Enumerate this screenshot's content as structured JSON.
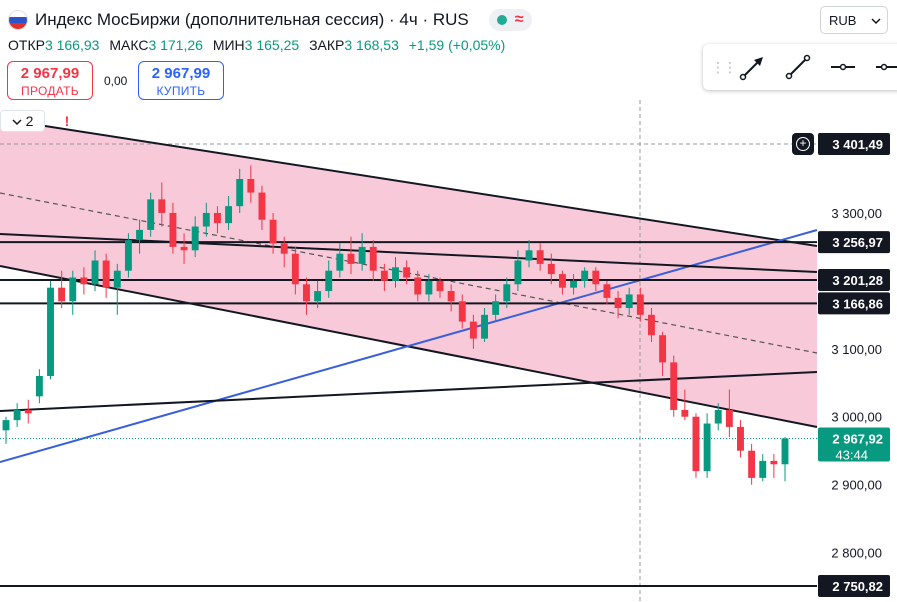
{
  "header": {
    "title": "Индекс МосБиржи (дополнительная сессия) · 4ч · RUS",
    "ohlc": [
      {
        "label": "ОТКР",
        "value": "3 166,93"
      },
      {
        "label": "МАКС",
        "value": "3 171,26"
      },
      {
        "label": "МИН",
        "value": "3 165,25"
      },
      {
        "label": "ЗАКР",
        "value": "3 168,53"
      }
    ],
    "change": "+1,59 (+0,05%)",
    "status_icons": [
      "market-open-dot-icon",
      "wave-icon"
    ]
  },
  "trade": {
    "sell_price": "2 967,99",
    "sell_label": "ПРОДАТЬ",
    "spread": "0,00",
    "buy_price": "2 967,99",
    "buy_label": "КУПИТЬ"
  },
  "indicators_toggle": "2",
  "currency": "RUB",
  "drawing_tools": [
    "arrow-tool-icon",
    "trend-line-tool-icon",
    "horizontal-ray-tool-icon",
    "horizontal-line-tool-icon"
  ],
  "colors": {
    "up": "#089981",
    "down": "#f23645",
    "channel_fill": "#f8c9d8",
    "trendline_blue": "#3a5fd9",
    "accent_blue": "#2962ff"
  },
  "chart_data": {
    "type": "candlestick",
    "y_range": [
      2735,
      3445
    ],
    "price_axis_ticks": [
      {
        "value": 3300,
        "label": "3 300,00"
      },
      {
        "value": 3100,
        "label": "3 100,00"
      },
      {
        "value": 3000,
        "label": "3 000,00"
      },
      {
        "value": 2900,
        "label": "2 900,00"
      },
      {
        "value": 2800,
        "label": "2 800,00"
      }
    ],
    "horizontal_levels": [
      {
        "value": 3256.97,
        "label": "3 256,97"
      },
      {
        "value": 3201.28,
        "label": "3 201,28"
      },
      {
        "value": 3166.86,
        "label": "3 166,86"
      },
      {
        "value": 2750.82,
        "label": "2 750,82"
      }
    ],
    "crosshair": {
      "value": 3401.49,
      "label": "3 401,49"
    },
    "last_price": {
      "value": 2967.92,
      "label": "2 967,92",
      "countdown": "43:44"
    },
    "candles": [
      [
        2980,
        2995,
        2960,
        3000
      ],
      [
        2995,
        3010,
        2985,
        3020
      ],
      [
        3010,
        3005,
        2990,
        3025
      ],
      [
        3030,
        3060,
        3020,
        3070
      ],
      [
        3060,
        3190,
        3055,
        3200
      ],
      [
        3190,
        3170,
        3160,
        3215
      ],
      [
        3170,
        3205,
        3150,
        3215
      ],
      [
        3205,
        3195,
        3180,
        3220
      ],
      [
        3195,
        3230,
        3185,
        3245
      ],
      [
        3230,
        3190,
        3175,
        3240
      ],
      [
        3190,
        3215,
        3150,
        3225
      ],
      [
        3215,
        3260,
        3205,
        3270
      ],
      [
        3260,
        3275,
        3240,
        3290
      ],
      [
        3275,
        3320,
        3265,
        3330
      ],
      [
        3320,
        3300,
        3280,
        3345
      ],
      [
        3300,
        3250,
        3240,
        3315
      ],
      [
        3250,
        3245,
        3225,
        3270
      ],
      [
        3245,
        3280,
        3235,
        3295
      ],
      [
        3280,
        3300,
        3265,
        3315
      ],
      [
        3300,
        3285,
        3270,
        3310
      ],
      [
        3285,
        3310,
        3275,
        3325
      ],
      [
        3310,
        3350,
        3300,
        3365
      ],
      [
        3350,
        3330,
        3315,
        3370
      ],
      [
        3330,
        3290,
        3275,
        3340
      ],
      [
        3290,
        3255,
        3240,
        3300
      ],
      [
        3255,
        3240,
        3220,
        3265
      ],
      [
        3240,
        3195,
        3180,
        3250
      ],
      [
        3195,
        3170,
        3150,
        3205
      ],
      [
        3170,
        3185,
        3160,
        3200
      ],
      [
        3185,
        3215,
        3175,
        3230
      ],
      [
        3215,
        3240,
        3205,
        3255
      ],
      [
        3240,
        3225,
        3210,
        3265
      ],
      [
        3225,
        3250,
        3215,
        3270
      ],
      [
        3250,
        3215,
        3200,
        3260
      ],
      [
        3215,
        3200,
        3185,
        3225
      ],
      [
        3200,
        3220,
        3190,
        3235
      ],
      [
        3220,
        3205,
        3195,
        3230
      ],
      [
        3205,
        3180,
        3170,
        3215
      ],
      [
        3180,
        3200,
        3170,
        3210
      ],
      [
        3200,
        3185,
        3175,
        3205
      ],
      [
        3185,
        3170,
        3155,
        3195
      ],
      [
        3170,
        3140,
        3130,
        3180
      ],
      [
        3140,
        3115,
        3100,
        3150
      ],
      [
        3115,
        3150,
        3110,
        3160
      ],
      [
        3150,
        3170,
        3140,
        3180
      ],
      [
        3170,
        3195,
        3160,
        3205
      ],
      [
        3195,
        3230,
        3185,
        3245
      ],
      [
        3230,
        3245,
        3220,
        3260
      ],
      [
        3245,
        3225,
        3215,
        3255
      ],
      [
        3225,
        3210,
        3195,
        3240
      ],
      [
        3210,
        3190,
        3180,
        3215
      ],
      [
        3190,
        3200,
        3180,
        3210
      ],
      [
        3200,
        3215,
        3190,
        3220
      ],
      [
        3215,
        3195,
        3185,
        3220
      ],
      [
        3195,
        3175,
        3165,
        3200
      ],
      [
        3175,
        3160,
        3145,
        3185
      ],
      [
        3160,
        3180,
        3150,
        3190
      ],
      [
        3180,
        3150,
        3140,
        3190
      ],
      [
        3150,
        3120,
        3110,
        3160
      ],
      [
        3120,
        3080,
        3060,
        3125
      ],
      [
        3080,
        3010,
        3000,
        3090
      ],
      [
        3010,
        3000,
        2995,
        3040
      ],
      [
        3000,
        2920,
        2910,
        3005
      ],
      [
        2920,
        2990,
        2910,
        3005
      ],
      [
        2990,
        3010,
        2980,
        3020
      ],
      [
        3010,
        2985,
        2970,
        3040
      ],
      [
        2985,
        2950,
        2940,
        2995
      ],
      [
        2950,
        2910,
        2900,
        2960
      ],
      [
        2910,
        2935,
        2905,
        2945
      ],
      [
        2935,
        2930,
        2910,
        2945
      ],
      [
        2930,
        2968,
        2905,
        2970
      ]
    ]
  }
}
